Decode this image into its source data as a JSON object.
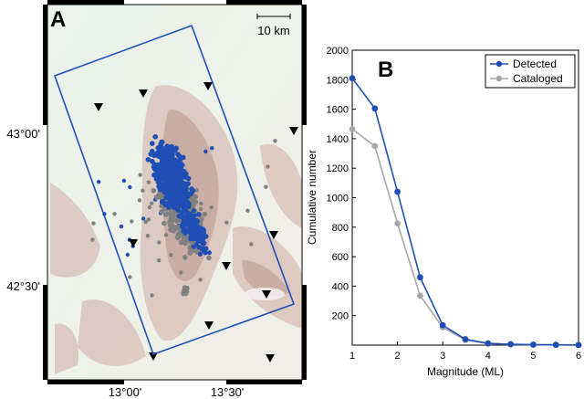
{
  "panel_a": {
    "label": "A",
    "scale_bar": "10 km",
    "lat_labels": [
      "43°00'",
      "42°30'"
    ],
    "lon_labels": [
      "13°00'",
      "13°30'"
    ]
  },
  "chart_data": [
    {
      "type": "scatter",
      "panel": "A",
      "title": "",
      "series": [
        {
          "name": "Detected",
          "color": "#1f4fb5"
        },
        {
          "name": "Cataloged",
          "color": "#808080"
        },
        {
          "name": "Stations",
          "color": "#000000"
        }
      ]
    },
    {
      "type": "line",
      "panel": "B",
      "label": "B",
      "xlabel": "Magnitude (ML)",
      "ylabel": "Cumulative number",
      "xlim": [
        1,
        6
      ],
      "ylim": [
        0,
        2000
      ],
      "xticks": [
        "1",
        "2",
        "3",
        "4",
        "5",
        "6"
      ],
      "yticks": [
        "200",
        "400",
        "600",
        "800",
        "1000",
        "1200",
        "1400",
        "1600",
        "1800",
        "2000"
      ],
      "legend_position": "top-right",
      "grid": false,
      "x": [
        1,
        1.5,
        2,
        2.5,
        3,
        3.5,
        4,
        4.5,
        5,
        5.5,
        6
      ],
      "series": [
        {
          "name": "Detected",
          "color": "#1f4fb5",
          "values": [
            1810,
            1605,
            1040,
            460,
            135,
            40,
            12,
            6,
            3,
            2,
            1
          ]
        },
        {
          "name": "Cataloged",
          "color": "#a8a8a8",
          "values": [
            1465,
            1350,
            825,
            335,
            120,
            35,
            10,
            5,
            3,
            2,
            1
          ]
        }
      ]
    }
  ]
}
